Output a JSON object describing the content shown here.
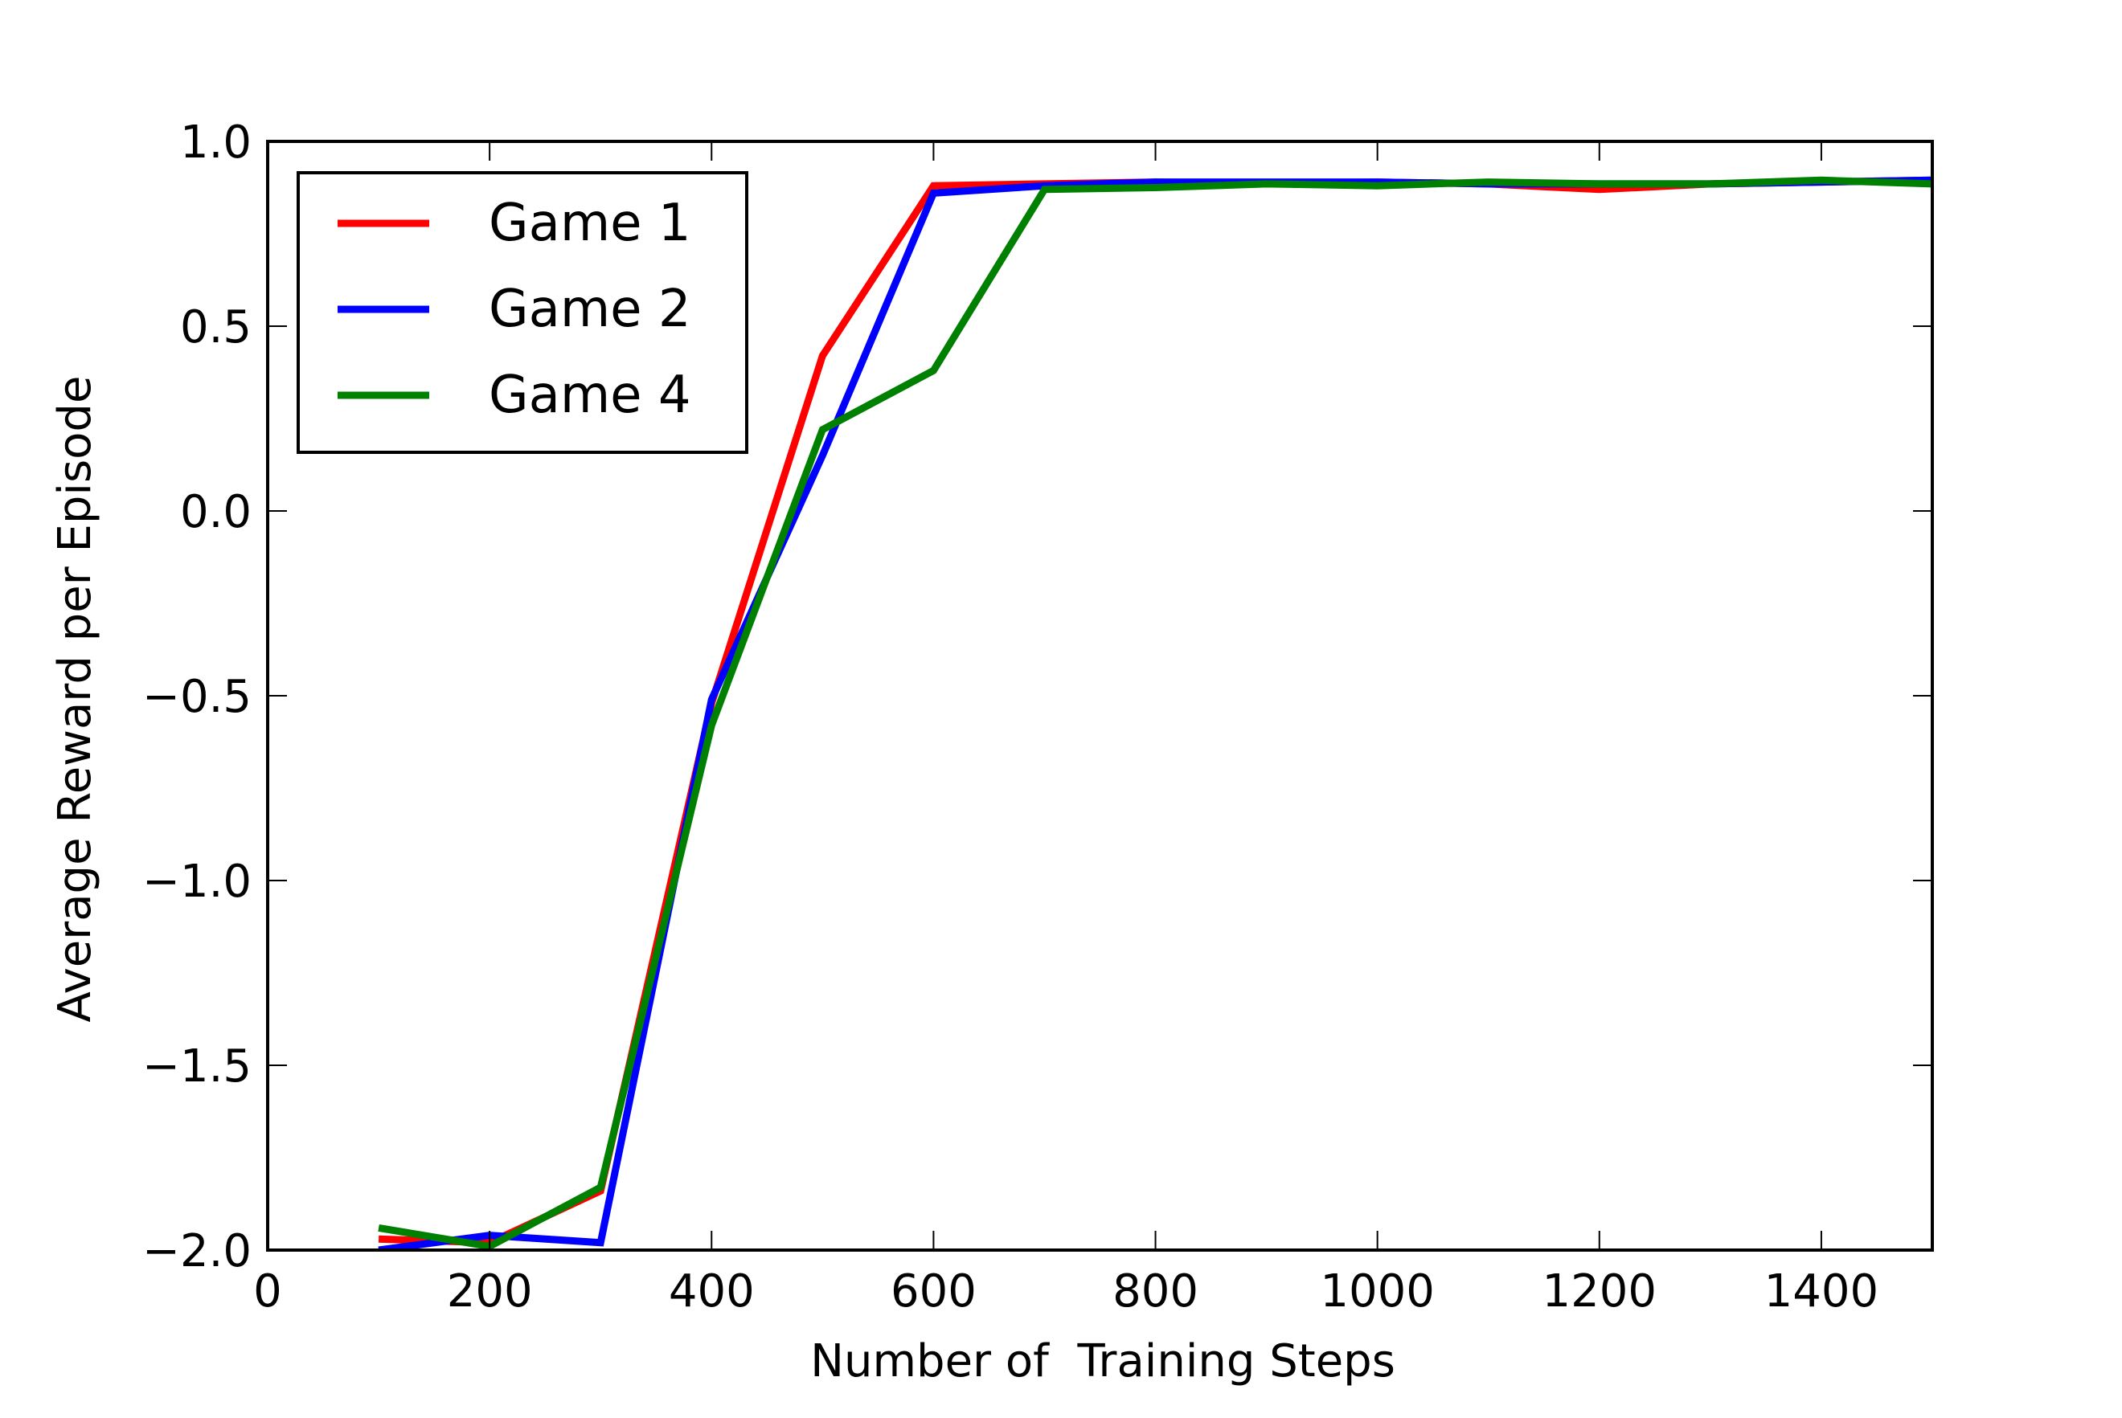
{
  "chart_data": {
    "type": "line",
    "title": "",
    "xlabel": "Number of  Training Steps",
    "ylabel": "Average Reward per Episode",
    "xlim": [
      0,
      1500
    ],
    "ylim": [
      -2.0,
      1.0
    ],
    "xticks": [
      0,
      200,
      400,
      600,
      800,
      1000,
      1200,
      1400
    ],
    "xtick_labels": [
      "0",
      "200",
      "400",
      "600",
      "800",
      "1000",
      "1200",
      "1400"
    ],
    "yticks": [
      1.0,
      0.5,
      0.0,
      -0.5,
      -1.0,
      -1.5,
      -2.0
    ],
    "ytick_labels": [
      "1.0",
      "0.5",
      "0.0",
      "−0.5",
      "−1.0",
      "−1.5",
      "−2.0"
    ],
    "grid": false,
    "legend_position": "upper-left",
    "x": [
      100,
      200,
      300,
      400,
      500,
      600,
      700,
      800,
      900,
      1000,
      1100,
      1200,
      1300,
      1400,
      1500
    ],
    "series": [
      {
        "name": "Game 1",
        "color": "#ff0000",
        "values": [
          -1.97,
          -1.98,
          -1.84,
          -0.52,
          0.42,
          0.88,
          0.885,
          0.89,
          0.885,
          0.89,
          0.885,
          0.87,
          0.885,
          0.89,
          0.895
        ]
      },
      {
        "name": "Game 2",
        "color": "#0000ff",
        "values": [
          -2.0,
          -1.96,
          -1.98,
          -0.51,
          0.15,
          0.86,
          0.88,
          0.89,
          0.89,
          0.89,
          0.885,
          0.885,
          0.885,
          0.89,
          0.895
        ]
      },
      {
        "name": "Game 4",
        "color": "#008000",
        "values": [
          -1.94,
          -1.99,
          -1.83,
          -0.58,
          0.22,
          0.38,
          0.87,
          0.875,
          0.885,
          0.88,
          0.89,
          0.885,
          0.885,
          0.895,
          0.885
        ]
      }
    ]
  }
}
